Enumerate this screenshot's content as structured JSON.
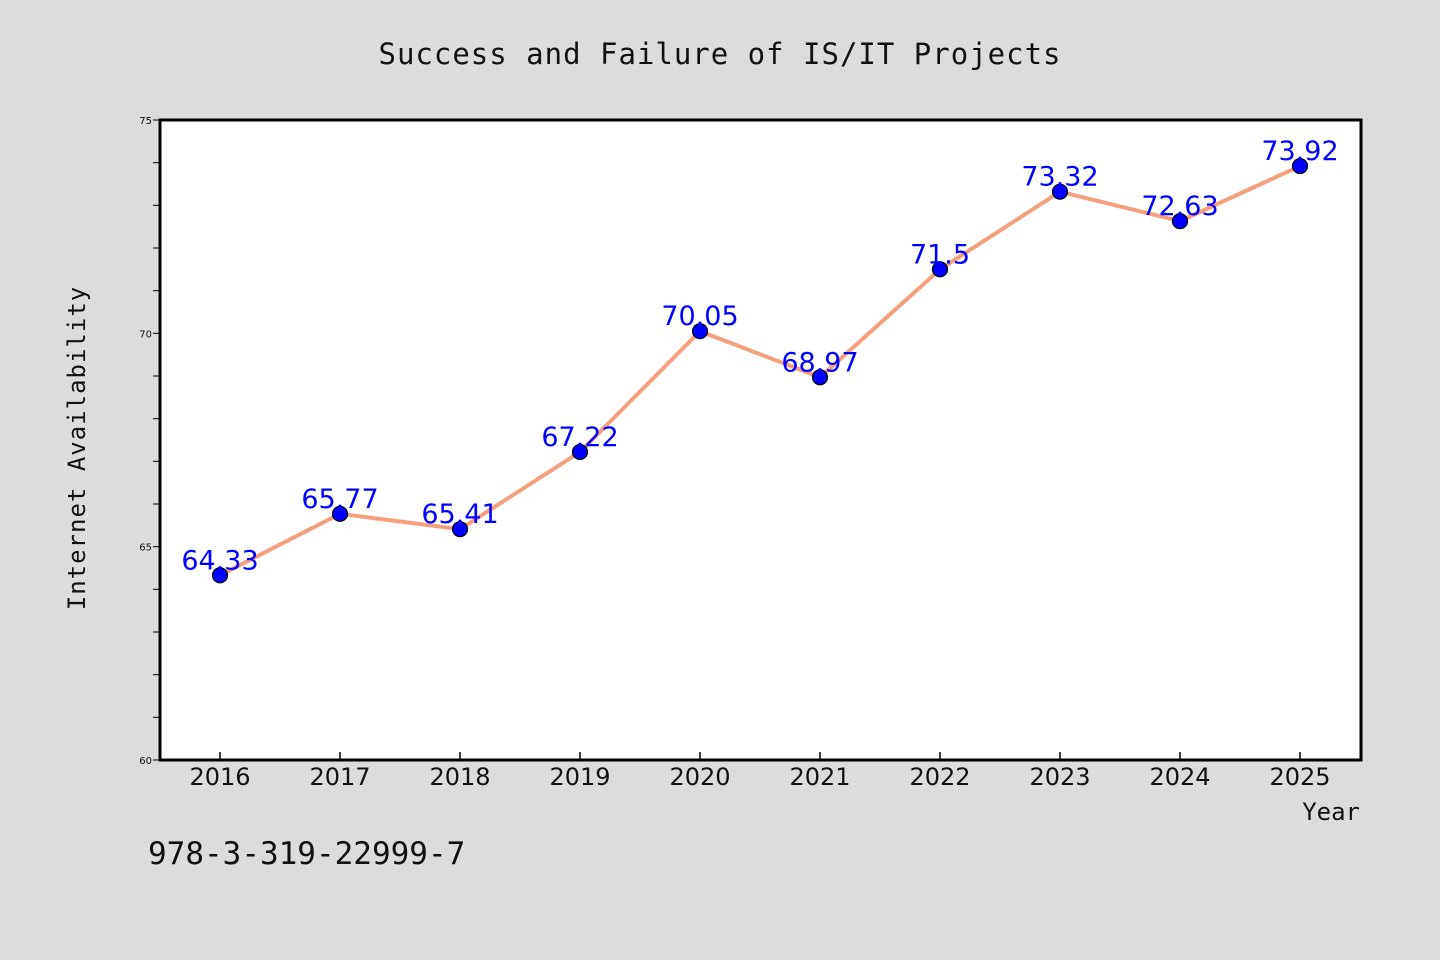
{
  "chart_data": {
    "type": "line",
    "title": "Success and Failure of IS/IT Projects",
    "xlabel": "Year",
    "ylabel": "Internet Availability",
    "categories": [
      "2016",
      "2017",
      "2018",
      "2019",
      "2020",
      "2021",
      "2022",
      "2023",
      "2024",
      "2025"
    ],
    "values": [
      64.33,
      65.77,
      65.41,
      67.22,
      70.05,
      68.97,
      71.5,
      73.32,
      72.63,
      73.92
    ],
    "data_labels": [
      "64.33",
      "65.77",
      "65.41",
      "67.22",
      "70.05",
      "68.97",
      "71.5",
      "73.32",
      "72.63",
      "73.92"
    ],
    "ylim": [
      60,
      75
    ],
    "yticks": [
      60,
      65,
      70,
      75
    ],
    "ytick_labels": [
      "60",
      "65",
      "70",
      "75"
    ],
    "y_minor_step": 1,
    "grid": false,
    "legend": "none",
    "line_color": "#f4a07e",
    "marker_color": "#0000ff",
    "label_color": "#0000ff",
    "plot_background": "#ffffff",
    "figure_background": "#dcdcdc"
  },
  "footnote": "978-3-319-22999-7"
}
